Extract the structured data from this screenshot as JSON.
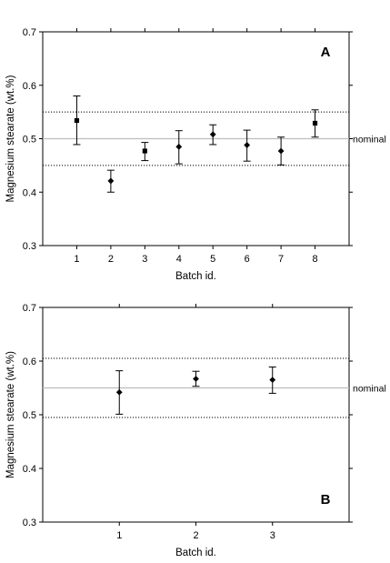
{
  "chart_data": [
    {
      "type": "scatter",
      "panel_label": "A",
      "xlabel": "Batch id.",
      "ylabel": "Magnesium stearate  (wt.%)",
      "categories": [
        "1",
        "2",
        "3",
        "4",
        "5",
        "6",
        "7",
        "8"
      ],
      "x": [
        1,
        2,
        3,
        4,
        5,
        6,
        7,
        8
      ],
      "y": [
        0.534,
        0.421,
        0.477,
        0.485,
        0.508,
        0.488,
        0.477,
        0.529
      ],
      "err_low": [
        0.489,
        0.4,
        0.459,
        0.453,
        0.489,
        0.458,
        0.451,
        0.503
      ],
      "err_high": [
        0.58,
        0.441,
        0.493,
        0.515,
        0.526,
        0.516,
        0.503,
        0.554
      ],
      "markers": [
        "square",
        "diamond",
        "square",
        "diamond",
        "diamond",
        "diamond",
        "diamond",
        "square"
      ],
      "xlim": [
        0,
        9
      ],
      "ylim": [
        0.3,
        0.7
      ],
      "y_ticks": [
        0.3,
        0.4,
        0.5,
        0.6,
        0.7
      ],
      "y_tick_labels": [
        "0.3",
        "0.4",
        "0.5",
        "0.6",
        "0.7"
      ],
      "nominal": 0.5,
      "nominal_label": "nominal",
      "limits": [
        0.45,
        0.55
      ]
    },
    {
      "type": "scatter",
      "panel_label": "B",
      "xlabel": "Batch id.",
      "ylabel": "Magnesium stearate  (wt.%)",
      "categories": [
        "1",
        "2",
        "3"
      ],
      "x": [
        1,
        2,
        3
      ],
      "y": [
        0.542,
        0.567,
        0.565
      ],
      "err_low": [
        0.501,
        0.553,
        0.54
      ],
      "err_high": [
        0.582,
        0.581,
        0.589
      ],
      "markers": [
        "diamond",
        "diamond",
        "diamond"
      ],
      "xlim": [
        0,
        4
      ],
      "ylim": [
        0.3,
        0.7
      ],
      "y_ticks": [
        0.3,
        0.4,
        0.5,
        0.6,
        0.7
      ],
      "y_tick_labels": [
        "0.3",
        "0.4",
        "0.5",
        "0.6",
        "0.7"
      ],
      "nominal": 0.55,
      "nominal_label": "nominal",
      "limits": [
        0.495,
        0.605
      ]
    }
  ]
}
